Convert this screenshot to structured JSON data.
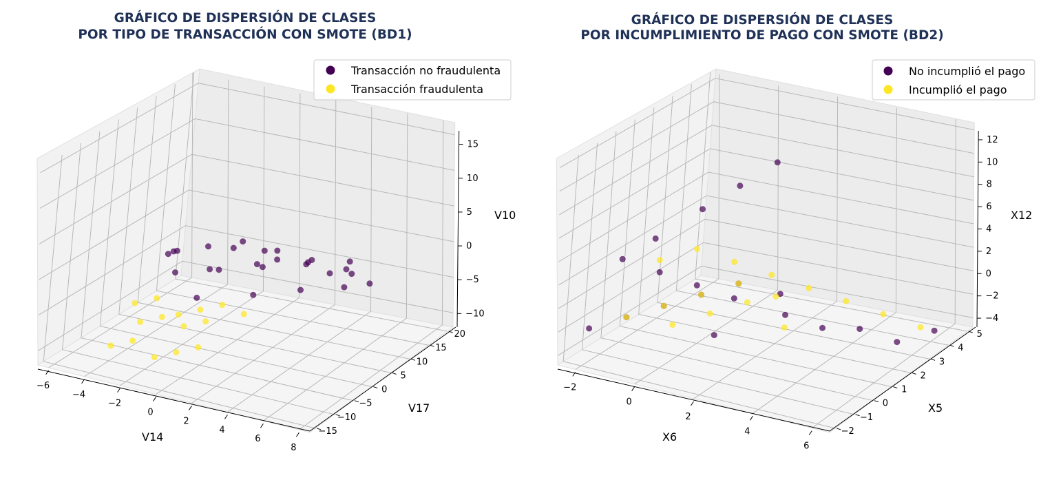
{
  "colors": {
    "class0": "#440154",
    "class1": "#fde725",
    "title": "#1f3157"
  },
  "chart_data": [
    {
      "type": "scatter",
      "title_line1": "GRÁFICO DE DISPERSIÓN DE CLASES",
      "title_line2": "POR TIPO DE TRANSACCIÓN CON SMOTE (BD1)",
      "xlabel": "V14",
      "ylabel": "V17",
      "zlabel": "V10",
      "xticks": [
        "−6",
        "−4",
        "−2",
        "0",
        "2",
        "4",
        "6",
        "8"
      ],
      "yticks": [
        "−15",
        "−10",
        "−5",
        "0",
        "5",
        "10",
        "15",
        "20"
      ],
      "zticks": [
        "−10",
        "−5",
        "0",
        "5",
        "10",
        "15"
      ],
      "xlim": [
        -6.5,
        8.5
      ],
      "ylim": [
        -17,
        22
      ],
      "zlim": [
        -13,
        16
      ],
      "series": [
        {
          "name": "Transacción no fraudulenta",
          "color": "#440154",
          "x": [
            -2.5,
            -1,
            0.5,
            2,
            3.5,
            5,
            -2,
            0,
            2,
            4,
            6,
            -1.5,
            1,
            3,
            5.5,
            0,
            2.5,
            4.5,
            6.5,
            7.5,
            -3,
            1.5,
            3.5,
            5.5,
            0.5,
            2.5
          ],
          "y": [
            0,
            2,
            4,
            6,
            8,
            10,
            -2,
            0,
            2,
            4,
            6,
            -4,
            -1,
            1,
            3,
            -6,
            -3,
            0,
            2,
            4,
            1,
            5,
            7,
            9,
            -5,
            -2
          ],
          "z": [
            0,
            1,
            2,
            1,
            0,
            -1,
            -2,
            -1,
            0,
            1,
            2,
            2,
            3,
            2,
            1,
            -3,
            -2,
            -1,
            0,
            0.5,
            -1,
            1,
            0,
            -1,
            1,
            2
          ]
        },
        {
          "name": "Transacción fraudulenta",
          "color": "#fde725",
          "x": [
            -3,
            -2,
            -1,
            0,
            1,
            2,
            -2.5,
            -1.5,
            -0.5,
            0.5,
            -3.5,
            -2.5,
            -1.5,
            -0.5,
            0.5
          ],
          "y": [
            -8,
            -7,
            -6,
            -5,
            -4,
            -3,
            -9,
            -8,
            -7,
            -6,
            -12,
            -11,
            -10,
            -9,
            -8
          ],
          "z": [
            -5,
            -4,
            -6,
            -5,
            -4,
            -5,
            -7,
            -6,
            -7,
            -6,
            -10,
            -9,
            -11,
            -10,
            -9
          ]
        }
      ],
      "legend_position": "top-right",
      "grid": true
    },
    {
      "type": "scatter",
      "title_line1": "GRÁFICO DE DISPERSIÓN DE CLASES",
      "title_line2": "POR INCUMPLIMIENTO DE PAGO CON SMOTE (BD2)",
      "xlabel": "X6",
      "ylabel": "X5",
      "zlabel": "X12",
      "xticks": [
        "−2",
        "0",
        "2",
        "4",
        "6"
      ],
      "yticks": [
        "−2",
        "−1",
        "0",
        "1",
        "2",
        "3",
        "4",
        "5"
      ],
      "zticks": [
        "−4",
        "−2",
        "0",
        "2",
        "4",
        "6",
        "8",
        "10",
        "12"
      ],
      "xlim": [
        -2.3,
        7.5
      ],
      "ylim": [
        -2.2,
        5.3
      ],
      "zlim": [
        -4,
        13
      ],
      "series": [
        {
          "name": "No incumplió el pago",
          "color": "#440154",
          "x": [
            -2,
            -1,
            0,
            1,
            2,
            -1.5,
            -0.5,
            0.5,
            1.5,
            3,
            4,
            5,
            6,
            7,
            0,
            1,
            2,
            -1,
            2.5,
            3.5
          ],
          "y": [
            -1,
            -0.5,
            0,
            0.5,
            1,
            0,
            0.5,
            1,
            1.5,
            2,
            2.5,
            3,
            3.5,
            4,
            2,
            2.5,
            3,
            1,
            -1,
            1
          ],
          "z": [
            -2,
            -1,
            0,
            1,
            2,
            3,
            2,
            1,
            0,
            -1,
            -2,
            -2,
            -3,
            -2,
            6,
            8,
            10,
            4,
            0,
            2
          ]
        },
        {
          "name": "Incumplió el pago",
          "color": "#fde725",
          "x": [
            -1,
            0,
            1,
            2,
            3,
            -0.5,
            0.5,
            1.5,
            2.5,
            3.5,
            4.5,
            5.5,
            6.5,
            1,
            2,
            3,
            4
          ],
          "y": [
            -0.5,
            0,
            0.5,
            1,
            1.5,
            0.5,
            1,
            1.5,
            2,
            2.5,
            3,
            3.5,
            4,
            -1,
            -0.5,
            0,
            0.5
          ],
          "z": [
            -1,
            0,
            1,
            2,
            1,
            3,
            4,
            3,
            2,
            1,
            0,
            -1,
            -2,
            0,
            1,
            2,
            0
          ]
        }
      ],
      "legend_position": "top-right",
      "grid": true
    }
  ]
}
